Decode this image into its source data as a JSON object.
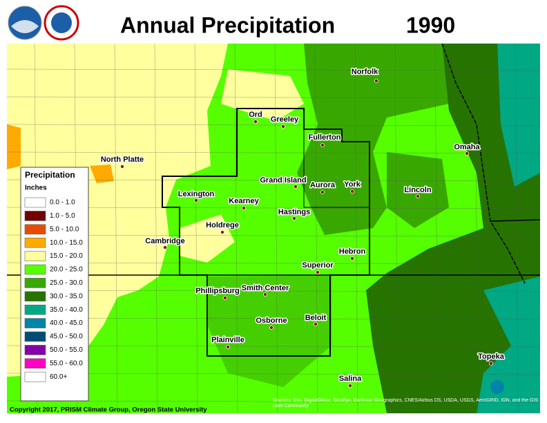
{
  "header": {
    "title": "Annual Precipitation",
    "year": "1990"
  },
  "legend": {
    "title": "Precipitation",
    "units": "Inches",
    "entries": [
      {
        "label": "0.0 - 1.0",
        "color": "#ffffff"
      },
      {
        "label": "1.0 - 5.0",
        "color": "#730000"
      },
      {
        "label": "5.0 - 10.0",
        "color": "#e64c00"
      },
      {
        "label": "10.0 - 15.0",
        "color": "#ffaa00"
      },
      {
        "label": "15.0 - 20.0",
        "color": "#ffff9e"
      },
      {
        "label": "20.0 - 25.0",
        "color": "#55ff00"
      },
      {
        "label": "25.0 - 30.0",
        "color": "#38a800"
      },
      {
        "label": "30.0 - 35.0",
        "color": "#267300"
      },
      {
        "label": "35.0 - 40.0",
        "color": "#00a884"
      },
      {
        "label": "40.0 - 45.0",
        "color": "#0084a8"
      },
      {
        "label": "45.0 - 50.0",
        "color": "#004c73"
      },
      {
        "label": "50.0 - 55.0",
        "color": "#8400a8"
      },
      {
        "label": "55.0 - 60.0",
        "color": "#ff00c5"
      },
      {
        "label": "60.0+",
        "color": "#ffffff"
      }
    ]
  },
  "cities": [
    "Norfolk",
    "Ord",
    "Greeley",
    "Fullerton",
    "North Platte",
    "Omaha",
    "Grand Island",
    "Aurora",
    "York",
    "Lincoln",
    "Lexington",
    "Kearney",
    "Hastings",
    "Holdrege",
    "Cambridge",
    "Hebron",
    "Superior",
    "Phillipsburg",
    "Smith Center",
    "Beloit",
    "Osborne",
    "Plainville",
    "Topeka",
    "Salina"
  ],
  "footer": {
    "copyright": "Copyright 2017, PRISM Climate Group, Oregon State University",
    "sources": "Sources: Esri, DigitalGlobe, GeoEye, Earthstar Geographics, CNES/Airbus DS, USDA, USGS, AeroGRID, IGN, and the GIS User Community"
  }
}
